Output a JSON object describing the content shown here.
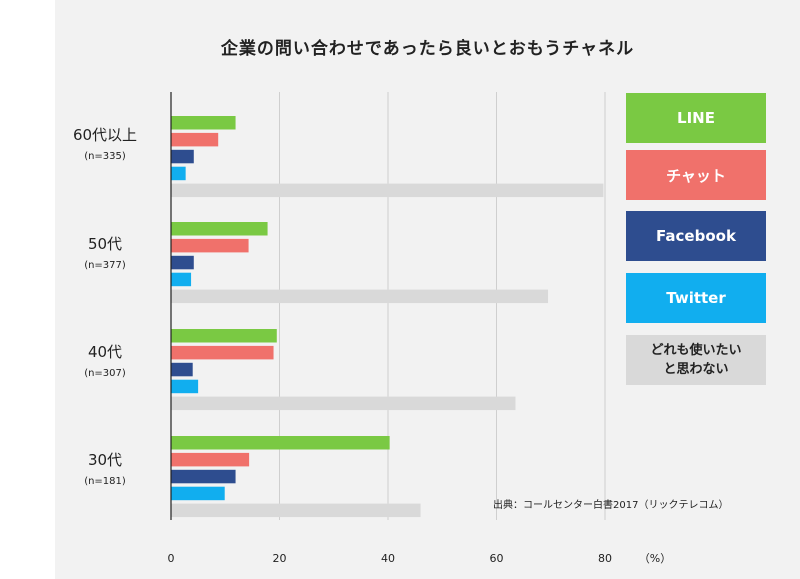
{
  "chart_data": {
    "type": "bar",
    "orientation": "horizontal",
    "title": "企業の問い合わせであったら良いとおもうチャネル",
    "unit": "（%）",
    "xlim": [
      0,
      80
    ],
    "xticks": [
      0,
      20,
      40,
      60,
      80
    ],
    "grid": true,
    "legend_position": "right",
    "groups": [
      {
        "name": "60代以上",
        "n": "(n=335)"
      },
      {
        "name": "50代",
        "n": "(n=377)"
      },
      {
        "name": "40代",
        "n": "(n=307)"
      },
      {
        "name": "30代",
        "n": "(n=181)"
      }
    ],
    "series": [
      {
        "name": "LINE",
        "color": "#7ac943",
        "values": [
          11.9,
          17.8,
          19.5,
          40.3
        ]
      },
      {
        "name": "チャット",
        "color": "#f0716b",
        "values": [
          8.7,
          14.3,
          18.9,
          14.4
        ]
      },
      {
        "name": "Facebook",
        "color": "#2e4d8f",
        "values": [
          4.2,
          4.2,
          4.0,
          11.9
        ]
      },
      {
        "name": "Twitter",
        "color": "#11aeef",
        "values": [
          2.7,
          3.7,
          5.0,
          9.9
        ]
      },
      {
        "name": "どれも使いたいと思わない",
        "color": "#d9d9d9",
        "values": [
          79.7,
          69.5,
          63.5,
          46.0
        ]
      }
    ],
    "source": "出典：コールセンター白書2017（リックテレコム）"
  },
  "legend": [
    {
      "label_line1": "LINE",
      "label_line2": "",
      "color": "#7ac943",
      "text_dark": false
    },
    {
      "label_line1": "チャット",
      "label_line2": "",
      "color": "#f0716b",
      "text_dark": false
    },
    {
      "label_line1": "Facebook",
      "label_line2": "",
      "color": "#2e4d8f",
      "text_dark": false
    },
    {
      "label_line1": "Twitter",
      "label_line2": "",
      "color": "#11aeef",
      "text_dark": false
    },
    {
      "label_line1": "どれも使いたい",
      "label_line2": "と思わない",
      "color": "#d9d9d9",
      "text_dark": true
    }
  ]
}
